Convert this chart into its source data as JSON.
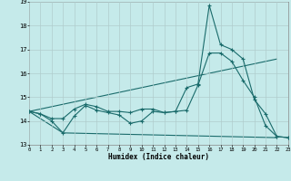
{
  "xlabel": "Humidex (Indice chaleur)",
  "xlim": [
    0,
    23
  ],
  "ylim": [
    13,
    19
  ],
  "yticks": [
    13,
    14,
    15,
    16,
    17,
    18,
    19
  ],
  "xticks": [
    0,
    1,
    2,
    3,
    4,
    5,
    6,
    7,
    8,
    9,
    10,
    11,
    12,
    13,
    14,
    15,
    16,
    17,
    18,
    19,
    20,
    21,
    22,
    23
  ],
  "bg_color": "#c5eaea",
  "grid_color": "#b0cccc",
  "line_color": "#1a6b6b",
  "line1_x": [
    0,
    1,
    2,
    3,
    4,
    5,
    6,
    7,
    8,
    9,
    10,
    11,
    12,
    13,
    14,
    15,
    16,
    17,
    18,
    19,
    20,
    21,
    22,
    23
  ],
  "line1_y": [
    14.4,
    14.3,
    14.1,
    14.1,
    14.5,
    14.7,
    14.6,
    14.4,
    14.4,
    14.35,
    14.5,
    14.5,
    14.35,
    14.4,
    14.45,
    15.5,
    16.85,
    16.85,
    16.5,
    15.7,
    15.0,
    13.8,
    13.35,
    13.3
  ],
  "line2_x": [
    0,
    1,
    2,
    3,
    4,
    5,
    6,
    7,
    8,
    9,
    10,
    11,
    12,
    13,
    14,
    15,
    16,
    17,
    18,
    19,
    20,
    21,
    22,
    23
  ],
  "line2_y": [
    14.4,
    14.3,
    14.0,
    13.5,
    14.2,
    14.65,
    14.45,
    14.35,
    14.25,
    13.9,
    14.0,
    14.4,
    14.35,
    14.4,
    15.4,
    15.55,
    18.85,
    17.2,
    17.0,
    16.6,
    14.9,
    14.3,
    13.35,
    13.3
  ],
  "trend1_x": [
    0,
    22
  ],
  "trend1_y": [
    14.4,
    16.6
  ],
  "trend2_x": [
    0,
    3,
    22
  ],
  "trend2_y": [
    14.4,
    13.5,
    13.3
  ]
}
